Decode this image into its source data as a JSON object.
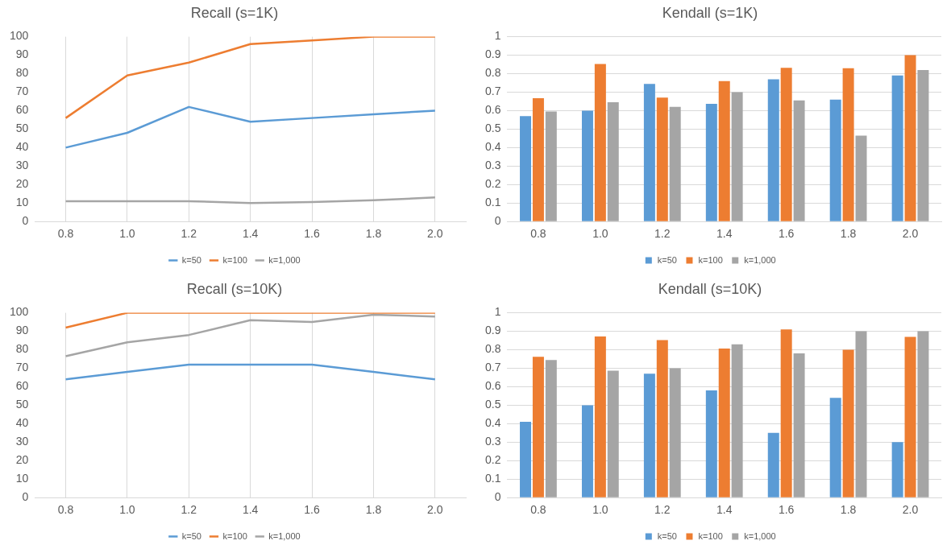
{
  "chart_data": [
    {
      "type": "line",
      "title": "Recall (s=1K)",
      "categories": [
        "0.8",
        "1.0",
        "1.2",
        "1.4",
        "1.6",
        "1.8",
        "2.0"
      ],
      "ylim": [
        0,
        100
      ],
      "yticks": [
        0,
        10,
        20,
        30,
        40,
        50,
        60,
        70,
        80,
        90,
        100
      ],
      "grid": "x",
      "legend": "bottom",
      "series": [
        {
          "name": "k=50",
          "color": "#5b9bd5",
          "values": [
            40,
            48,
            62,
            54,
            56,
            58,
            60
          ]
        },
        {
          "name": "k=100",
          "color": "#ed7d31",
          "values": [
            56,
            79,
            86,
            96,
            98,
            100,
            100
          ]
        },
        {
          "name": "k=1,000",
          "color": "#a5a5a5",
          "values": [
            11,
            11,
            11,
            10,
            10.5,
            11.5,
            13
          ]
        }
      ]
    },
    {
      "type": "bar",
      "title": "Kendall (s=1K)",
      "categories": [
        "0.8",
        "1.0",
        "1.2",
        "1.4",
        "1.6",
        "1.8",
        "2.0"
      ],
      "ylim": [
        0,
        1
      ],
      "yticks": [
        0,
        0.1,
        0.2,
        0.3,
        0.4,
        0.5,
        0.6,
        0.7,
        0.8,
        0.9,
        1
      ],
      "grid": "y",
      "legend": "bottom",
      "series": [
        {
          "name": "k=50",
          "color": "#5b9bd5",
          "values": [
            0.57,
            0.6,
            0.745,
            0.637,
            0.77,
            0.66,
            0.79
          ]
        },
        {
          "name": "k=100",
          "color": "#ed7d31",
          "values": [
            0.667,
            0.852,
            0.67,
            0.76,
            0.832,
            0.83,
            0.9
          ]
        },
        {
          "name": "k=1,000",
          "color": "#a5a5a5",
          "values": [
            0.595,
            0.645,
            0.62,
            0.7,
            0.655,
            0.465,
            0.82
          ]
        }
      ]
    },
    {
      "type": "line",
      "title": "Recall (s=10K)",
      "categories": [
        "0.8",
        "1.0",
        "1.2",
        "1.4",
        "1.6",
        "1.8",
        "2.0"
      ],
      "ylim": [
        0,
        100
      ],
      "yticks": [
        0,
        10,
        20,
        30,
        40,
        50,
        60,
        70,
        80,
        90,
        100
      ],
      "grid": "x",
      "legend": "bottom",
      "series": [
        {
          "name": "k=50",
          "color": "#5b9bd5",
          "values": [
            64,
            68,
            72,
            72,
            72,
            68,
            64
          ]
        },
        {
          "name": "k=100",
          "color": "#ed7d31",
          "values": [
            92,
            100,
            100,
            100,
            100,
            100,
            100
          ]
        },
        {
          "name": "k=1,000",
          "color": "#a5a5a5",
          "values": [
            76.5,
            84,
            88,
            96,
            95,
            99,
            98
          ]
        }
      ]
    },
    {
      "type": "bar",
      "title": "Kendall (s=10K)",
      "categories": [
        "0.8",
        "1.0",
        "1.2",
        "1.4",
        "1.6",
        "1.8",
        "2.0"
      ],
      "ylim": [
        0,
        1
      ],
      "yticks": [
        0,
        0.1,
        0.2,
        0.3,
        0.4,
        0.5,
        0.6,
        0.7,
        0.8,
        0.9,
        1
      ],
      "grid": "y",
      "legend": "bottom",
      "series": [
        {
          "name": "k=50",
          "color": "#5b9bd5",
          "values": [
            0.41,
            0.5,
            0.67,
            0.58,
            0.35,
            0.54,
            0.3
          ]
        },
        {
          "name": "k=100",
          "color": "#ed7d31",
          "values": [
            0.762,
            0.872,
            0.852,
            0.807,
            0.91,
            0.8,
            0.87
          ]
        },
        {
          "name": "k=1,000",
          "color": "#a5a5a5",
          "values": [
            0.745,
            0.687,
            0.7,
            0.83,
            0.78,
            0.9,
            0.9
          ]
        }
      ]
    }
  ]
}
